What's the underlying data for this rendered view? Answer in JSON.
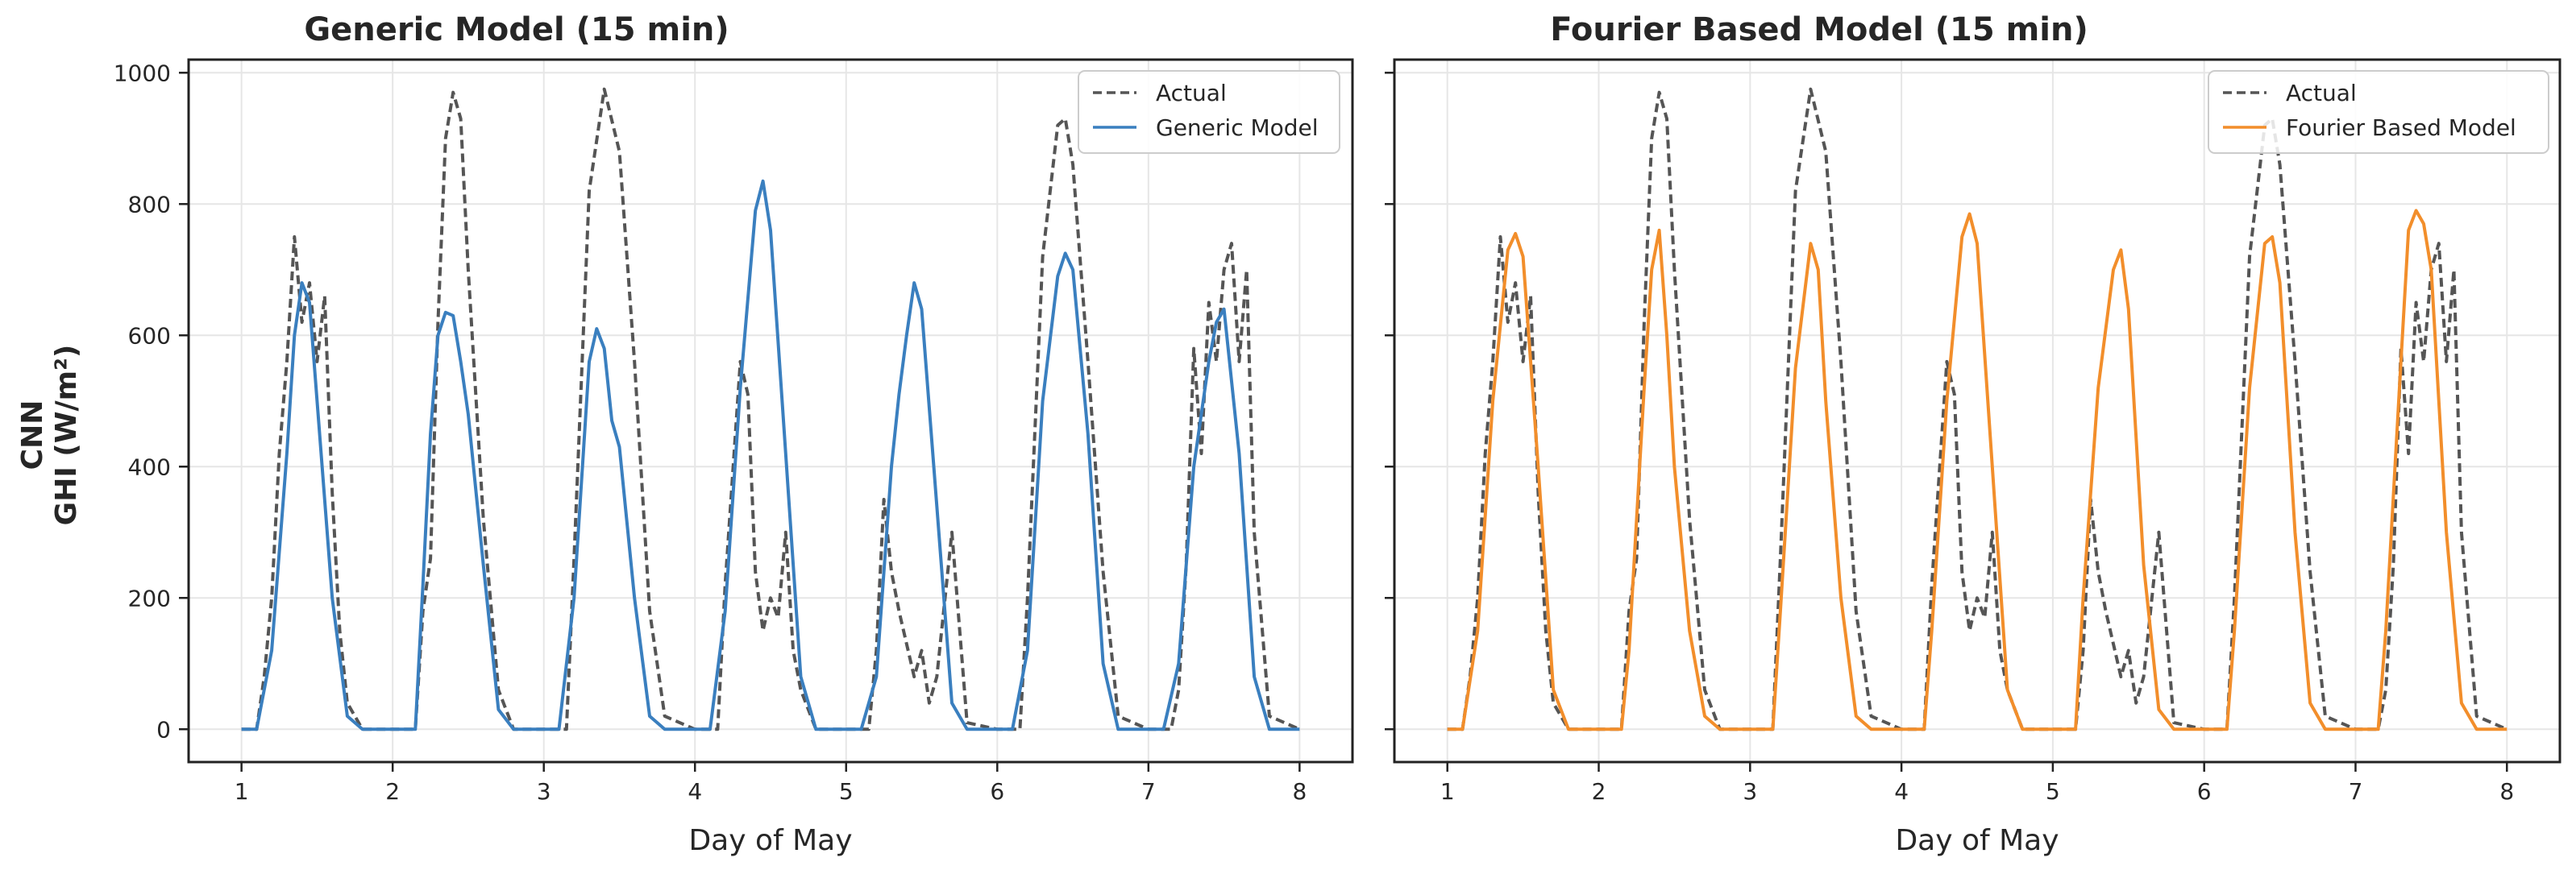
{
  "ylabel_line1": "CNN",
  "ylabel_line2": "GHI (W/m²)",
  "colors": {
    "actual": "#555555",
    "generic": "#3a7fbf",
    "fourier": "#f28e2b",
    "grid": "#e6e6e6",
    "axes": "#222222"
  },
  "chart_data": [
    {
      "type": "line",
      "title": "Generic Model (15 min)",
      "xlabel": "Day of May",
      "ylabel": "CNN GHI (W/m²)",
      "xlim": [
        0.65,
        8.35
      ],
      "ylim": [
        -50,
        1020
      ],
      "xticks": [
        1,
        2,
        3,
        4,
        5,
        6,
        7,
        8
      ],
      "yticks": [
        0,
        200,
        400,
        600,
        800,
        1000
      ],
      "grid": true,
      "legend": "top-right",
      "series": [
        {
          "name": "Actual",
          "style": "dashed",
          "color": "#555555",
          "x": [
            1.0,
            1.1,
            1.15,
            1.2,
            1.25,
            1.3,
            1.35,
            1.4,
            1.45,
            1.5,
            1.55,
            1.6,
            1.65,
            1.7,
            1.8,
            2.0,
            2.15,
            2.2,
            2.25,
            2.3,
            2.35,
            2.4,
            2.45,
            2.5,
            2.6,
            2.7,
            2.8,
            3.0,
            3.15,
            3.2,
            3.3,
            3.4,
            3.5,
            3.6,
            3.7,
            3.8,
            4.0,
            4.15,
            4.2,
            4.3,
            4.35,
            4.4,
            4.45,
            4.5,
            4.55,
            4.6,
            4.65,
            4.7,
            4.8,
            5.0,
            5.15,
            5.2,
            5.25,
            5.3,
            5.35,
            5.4,
            5.45,
            5.5,
            5.55,
            5.6,
            5.7,
            5.8,
            6.0,
            6.15,
            6.2,
            6.3,
            6.4,
            6.45,
            6.5,
            6.6,
            6.7,
            6.8,
            7.0,
            7.15,
            7.2,
            7.25,
            7.3,
            7.35,
            7.4,
            7.45,
            7.5,
            7.55,
            7.6,
            7.65,
            7.7,
            7.8,
            8.0
          ],
          "y": [
            0,
            0,
            80,
            200,
            420,
            560,
            750,
            620,
            680,
            560,
            660,
            360,
            150,
            40,
            0,
            0,
            0,
            180,
            260,
            620,
            900,
            970,
            930,
            700,
            320,
            60,
            0,
            0,
            0,
            260,
            820,
            975,
            880,
            560,
            180,
            20,
            0,
            0,
            220,
            560,
            510,
            240,
            150,
            200,
            170,
            300,
            120,
            60,
            0,
            0,
            0,
            120,
            350,
            240,
            180,
            130,
            80,
            120,
            40,
            80,
            300,
            10,
            0,
            0,
            200,
            720,
            920,
            930,
            860,
            560,
            240,
            20,
            0,
            0,
            60,
            250,
            580,
            420,
            650,
            560,
            700,
            740,
            560,
            700,
            300,
            20,
            0
          ]
        },
        {
          "name": "Generic Model",
          "style": "solid",
          "color": "#3a7fbf",
          "x": [
            1.0,
            1.1,
            1.2,
            1.3,
            1.35,
            1.4,
            1.45,
            1.5,
            1.6,
            1.7,
            1.8,
            2.0,
            2.15,
            2.2,
            2.25,
            2.3,
            2.35,
            2.4,
            2.45,
            2.5,
            2.6,
            2.7,
            2.8,
            3.0,
            3.1,
            3.2,
            3.3,
            3.35,
            3.4,
            3.45,
            3.5,
            3.6,
            3.7,
            3.8,
            4.0,
            4.1,
            4.2,
            4.3,
            4.4,
            4.45,
            4.5,
            4.6,
            4.7,
            4.8,
            5.0,
            5.1,
            5.2,
            5.3,
            5.35,
            5.4,
            5.45,
            5.5,
            5.6,
            5.7,
            5.8,
            6.0,
            6.1,
            6.2,
            6.3,
            6.4,
            6.45,
            6.5,
            6.6,
            6.7,
            6.8,
            7.0,
            7.1,
            7.2,
            7.3,
            7.4,
            7.45,
            7.5,
            7.6,
            7.7,
            7.8,
            8.0
          ],
          "y": [
            0,
            0,
            120,
            420,
            600,
            680,
            650,
            500,
            200,
            20,
            0,
            0,
            0,
            220,
            450,
            600,
            635,
            630,
            560,
            480,
            250,
            30,
            0,
            0,
            0,
            200,
            560,
            610,
            580,
            470,
            430,
            200,
            20,
            0,
            0,
            0,
            180,
            520,
            790,
            835,
            760,
            420,
            80,
            0,
            0,
            0,
            80,
            400,
            510,
            600,
            680,
            640,
            340,
            40,
            0,
            0,
            0,
            120,
            500,
            690,
            725,
            700,
            450,
            100,
            0,
            0,
            0,
            100,
            400,
            560,
            620,
            640,
            420,
            80,
            0,
            0
          ]
        }
      ]
    },
    {
      "type": "line",
      "title": "Fourier Based Model (15 min)",
      "xlabel": "Day of May",
      "ylabel": "",
      "xlim": [
        0.65,
        8.35
      ],
      "ylim": [
        -50,
        1020
      ],
      "xticks": [
        1,
        2,
        3,
        4,
        5,
        6,
        7,
        8
      ],
      "yticks": [
        0,
        200,
        400,
        600,
        800,
        1000
      ],
      "grid": true,
      "legend": "top-right",
      "series": [
        {
          "name": "Actual",
          "style": "dashed",
          "color": "#555555",
          "x": [
            1.0,
            1.1,
            1.15,
            1.2,
            1.25,
            1.3,
            1.35,
            1.4,
            1.45,
            1.5,
            1.55,
            1.6,
            1.65,
            1.7,
            1.8,
            2.0,
            2.15,
            2.2,
            2.25,
            2.3,
            2.35,
            2.4,
            2.45,
            2.5,
            2.6,
            2.7,
            2.8,
            3.0,
            3.15,
            3.2,
            3.3,
            3.4,
            3.5,
            3.6,
            3.7,
            3.8,
            4.0,
            4.15,
            4.2,
            4.3,
            4.35,
            4.4,
            4.45,
            4.5,
            4.55,
            4.6,
            4.65,
            4.7,
            4.8,
            5.0,
            5.15,
            5.2,
            5.25,
            5.3,
            5.35,
            5.4,
            5.45,
            5.5,
            5.55,
            5.6,
            5.7,
            5.8,
            6.0,
            6.15,
            6.2,
            6.3,
            6.4,
            6.45,
            6.5,
            6.6,
            6.7,
            6.8,
            7.0,
            7.15,
            7.2,
            7.25,
            7.3,
            7.35,
            7.4,
            7.45,
            7.5,
            7.55,
            7.6,
            7.65,
            7.7,
            7.8,
            8.0
          ],
          "y": [
            0,
            0,
            80,
            200,
            420,
            560,
            750,
            620,
            680,
            560,
            660,
            360,
            150,
            40,
            0,
            0,
            0,
            180,
            260,
            620,
            900,
            970,
            930,
            700,
            320,
            60,
            0,
            0,
            0,
            260,
            820,
            975,
            880,
            560,
            180,
            20,
            0,
            0,
            220,
            560,
            510,
            240,
            150,
            200,
            170,
            300,
            120,
            60,
            0,
            0,
            0,
            120,
            350,
            240,
            180,
            130,
            80,
            120,
            40,
            80,
            300,
            10,
            0,
            0,
            200,
            720,
            920,
            930,
            860,
            560,
            240,
            20,
            0,
            0,
            60,
            250,
            580,
            420,
            650,
            560,
            700,
            740,
            560,
            700,
            300,
            20,
            0
          ]
        },
        {
          "name": "Fourier Based Model",
          "style": "solid",
          "color": "#f28e2b",
          "x": [
            1.0,
            1.1,
            1.2,
            1.3,
            1.4,
            1.45,
            1.5,
            1.6,
            1.7,
            1.8,
            2.0,
            2.15,
            2.2,
            2.3,
            2.35,
            2.4,
            2.45,
            2.5,
            2.6,
            2.7,
            2.8,
            3.0,
            3.15,
            3.2,
            3.3,
            3.4,
            3.45,
            3.5,
            3.6,
            3.7,
            3.8,
            4.0,
            4.15,
            4.2,
            4.3,
            4.4,
            4.45,
            4.5,
            4.6,
            4.7,
            4.8,
            5.0,
            5.15,
            5.2,
            5.3,
            5.4,
            5.45,
            5.5,
            5.6,
            5.7,
            5.8,
            6.0,
            6.15,
            6.2,
            6.3,
            6.4,
            6.45,
            6.5,
            6.6,
            6.7,
            6.8,
            7.0,
            7.15,
            7.2,
            7.3,
            7.35,
            7.4,
            7.45,
            7.5,
            7.6,
            7.7,
            7.8,
            8.0
          ],
          "y": [
            0,
            0,
            150,
            500,
            730,
            755,
            720,
            400,
            60,
            0,
            0,
            0,
            120,
            520,
            700,
            760,
            600,
            400,
            150,
            20,
            0,
            0,
            0,
            180,
            550,
            740,
            700,
            500,
            200,
            20,
            0,
            0,
            0,
            150,
            500,
            750,
            785,
            740,
            400,
            60,
            0,
            0,
            0,
            200,
            520,
            700,
            730,
            640,
            250,
            30,
            0,
            0,
            0,
            150,
            520,
            740,
            750,
            680,
            300,
            40,
            0,
            0,
            0,
            150,
            560,
            760,
            790,
            770,
            700,
            300,
            40,
            0,
            0
          ]
        }
      ]
    }
  ]
}
